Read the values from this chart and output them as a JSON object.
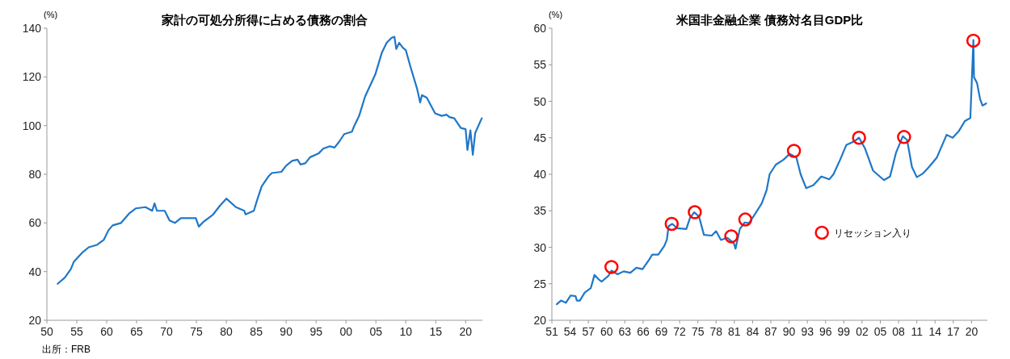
{
  "chart_data": [
    {
      "type": "line",
      "title": "家計の可処分所得に占める債務の割合",
      "ylabel": "(%)",
      "xlim": [
        1950,
        2022.8
      ],
      "ylim": [
        20,
        140
      ],
      "yticks": [
        20,
        40,
        60,
        80,
        100,
        120,
        140
      ],
      "xticks": [
        {
          "value": 1950,
          "label": "50"
        },
        {
          "value": 1955,
          "label": "55"
        },
        {
          "value": 1960,
          "label": "60"
        },
        {
          "value": 1965,
          "label": "65"
        },
        {
          "value": 1970,
          "label": "70"
        },
        {
          "value": 1975,
          "label": "75"
        },
        {
          "value": 1980,
          "label": "80"
        },
        {
          "value": 1985,
          "label": "85"
        },
        {
          "value": 1990,
          "label": "90"
        },
        {
          "value": 1995,
          "label": "95"
        },
        {
          "value": 2000,
          "label": "00"
        },
        {
          "value": 2005,
          "label": "05"
        },
        {
          "value": 2010,
          "label": "10"
        },
        {
          "value": 2015,
          "label": "15"
        },
        {
          "value": 2020,
          "label": "20"
        }
      ],
      "grid": false,
      "legend": false,
      "annotations": [
        "出所：FRB"
      ],
      "series": [
        {
          "color": "#1f77c8",
          "x": [
            1951.8,
            1953,
            1954,
            1954.5,
            1956,
            1957,
            1958.4,
            1959.5,
            1960.3,
            1961,
            1962.4,
            1963.8,
            1964.9,
            1966.5,
            1967.6,
            1968,
            1968.4,
            1969.7,
            1970.5,
            1971.4,
            1972.4,
            1974,
            1974.9,
            1975.4,
            1976.2,
            1977.8,
            1978.9,
            1980,
            1981.6,
            1983,
            1983.2,
            1984.6,
            1985.1,
            1985.9,
            1987,
            1987.6,
            1989.2,
            1990,
            1991,
            1991.9,
            1992.4,
            1993.2,
            1994,
            1995.4,
            1996.2,
            1997.3,
            1998.1,
            1998.9,
            1999.7,
            2001,
            2001.4,
            2002.2,
            2003.2,
            2004.9,
            2006,
            2006.8,
            2007.6,
            2008.1,
            2008.4,
            2008.9,
            2009.5,
            2010,
            2010.8,
            2011.9,
            2012.4,
            2012.7,
            2013.5,
            2014.9,
            2016,
            2016.8,
            2017.3,
            2018.1,
            2019.2,
            2020,
            2020.3,
            2020.8,
            2021.2,
            2021.6,
            2022.7
          ],
          "values": [
            35,
            37.5,
            41,
            44,
            48,
            50,
            51,
            53,
            57,
            59,
            60,
            64,
            66,
            66.5,
            65,
            68,
            65,
            65,
            61,
            60,
            62,
            62,
            62,
            58.5,
            60.5,
            63.5,
            67,
            70,
            66.5,
            65,
            63.5,
            65,
            69,
            75,
            79,
            80.5,
            81,
            83.5,
            85.5,
            86,
            84,
            84.5,
            87,
            88.5,
            90.5,
            91.5,
            91,
            93.5,
            96.5,
            97.5,
            100,
            104,
            112,
            121,
            130,
            134,
            136,
            136.5,
            131.5,
            134,
            132,
            131,
            124,
            115,
            109.5,
            112.5,
            111.5,
            105,
            104,
            104.5,
            103.5,
            103,
            99,
            98.5,
            90,
            98,
            88,
            97,
            103
          ]
        }
      ]
    },
    {
      "type": "line",
      "title": "米国非金融企業 債務対名目GDP比",
      "ylabel": "(%)",
      "xlim": [
        1951,
        2022.6
      ],
      "ylim": [
        20,
        60
      ],
      "yticks": [
        20,
        25,
        30,
        35,
        40,
        45,
        50,
        55,
        60
      ],
      "xticks": [
        {
          "value": 1951,
          "label": "51"
        },
        {
          "value": 1954,
          "label": "54"
        },
        {
          "value": 1957,
          "label": "57"
        },
        {
          "value": 1960,
          "label": "60"
        },
        {
          "value": 1963,
          "label": "63"
        },
        {
          "value": 1966,
          "label": "66"
        },
        {
          "value": 1969,
          "label": "69"
        },
        {
          "value": 1972,
          "label": "72"
        },
        {
          "value": 1975,
          "label": "75"
        },
        {
          "value": 1978,
          "label": "78"
        },
        {
          "value": 1981,
          "label": "81"
        },
        {
          "value": 1984,
          "label": "84"
        },
        {
          "value": 1987,
          "label": "87"
        },
        {
          "value": 1990,
          "label": "90"
        },
        {
          "value": 1993,
          "label": "93"
        },
        {
          "value": 1996,
          "label": "96"
        },
        {
          "value": 1999,
          "label": "99"
        },
        {
          "value": 2002,
          "label": "02"
        },
        {
          "value": 2005,
          "label": "05"
        },
        {
          "value": 2008,
          "label": "08"
        },
        {
          "value": 2011,
          "label": "11"
        },
        {
          "value": 2014,
          "label": "14"
        },
        {
          "value": 2017,
          "label": "17"
        },
        {
          "value": 2020,
          "label": "20"
        }
      ],
      "grid": false,
      "legend": "right",
      "series": [
        {
          "color": "#1f77c8",
          "x": [
            1951.8,
            1952.5,
            1953.3,
            1954.1,
            1954.9,
            1955.1,
            1955.6,
            1956.4,
            1957.4,
            1958,
            1958.7,
            1959.2,
            1960.3,
            1960.8,
            1961.8,
            1962.8,
            1963.9,
            1964.9,
            1965.9,
            1967,
            1967.5,
            1968.5,
            1969.5,
            1969.9,
            1970.2,
            1970.8,
            1971.6,
            1973.1,
            1973.7,
            1974.4,
            1975.2,
            1976,
            1977.3,
            1978,
            1978.8,
            1979.8,
            1980.9,
            1981.2,
            1981.9,
            1982.7,
            1983.4,
            1984.2,
            1985.5,
            1986.3,
            1986.8,
            1987.8,
            1989.1,
            1990.1,
            1991.2,
            1991.9,
            1992.8,
            1994,
            1995.3,
            1996.6,
            1997.3,
            1998.4,
            1999.4,
            2000.7,
            2001.5,
            2002.5,
            2003.8,
            2005.6,
            2006.6,
            2007.6,
            2008.7,
            2009.4,
            2010.2,
            2011,
            2012,
            2013,
            2014.3,
            2015.9,
            2016.9,
            2017.9,
            2018.9,
            2019.8,
            2020.3,
            2020.4,
            2020.9,
            2021.4,
            2021.8,
            2022.4
          ],
          "values": [
            22.2,
            22.7,
            22.4,
            23.4,
            23.3,
            22.7,
            22.7,
            23.8,
            24.4,
            26.2,
            25.6,
            25.3,
            26.1,
            26.8,
            26.3,
            26.7,
            26.5,
            27.2,
            27,
            28.3,
            29,
            29,
            30.2,
            31,
            32.9,
            33.2,
            32.6,
            32.5,
            34,
            34.8,
            34.2,
            31.7,
            31.6,
            32.2,
            31,
            31.3,
            30.6,
            29.8,
            32.5,
            33.4,
            33.3,
            34.3,
            36,
            37.8,
            40,
            41.3,
            42,
            42.8,
            42.3,
            40,
            38.1,
            38.5,
            39.7,
            39.3,
            40,
            42,
            44,
            44.5,
            45,
            43.5,
            40.5,
            39.2,
            39.7,
            43,
            45.2,
            44.7,
            41,
            39.6,
            40.1,
            41,
            42.3,
            45.4,
            45,
            45.9,
            47.3,
            47.7,
            58.4,
            53.3,
            52.5,
            50.3,
            49.4,
            49.7
          ]
        },
        {
          "type": "scatter",
          "name": "リセッション入り",
          "color": "#ff0000",
          "marker": "circle",
          "x": [
            1960.8,
            1970.7,
            1974.5,
            1980.5,
            1982.8,
            1990.8,
            2001.5,
            2008.9,
            2020.3
          ],
          "values": [
            27.3,
            33.2,
            34.8,
            31.5,
            33.8,
            43.2,
            45,
            45.1,
            58.3
          ]
        }
      ]
    }
  ]
}
